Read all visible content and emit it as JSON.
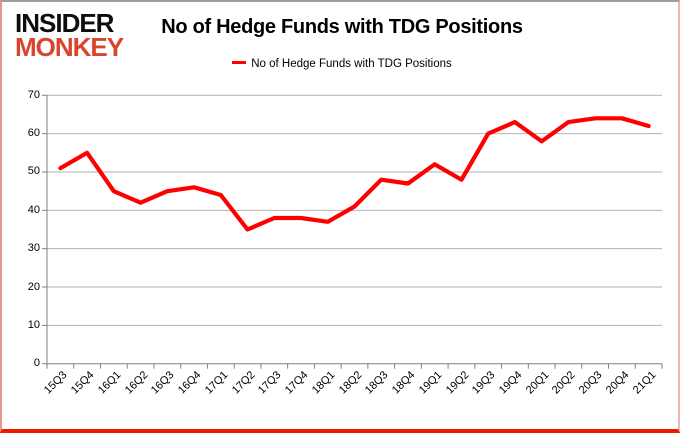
{
  "logo": {
    "line1": "INSIDER",
    "line2": "MONKEY",
    "accent_color": "#d9452c"
  },
  "header": {
    "title": "No of Hedge Funds with TDG Positions"
  },
  "legend": {
    "label": "No of Hedge Funds with TDG Positions",
    "line_color": "#ff0000"
  },
  "chart_data": {
    "type": "line",
    "title": "No of Hedge Funds with TDG Positions",
    "categories": [
      "15Q3",
      "15Q4",
      "16Q1",
      "16Q2",
      "16Q3",
      "16Q4",
      "17Q1",
      "17Q2",
      "17Q3",
      "17Q4",
      "18Q1",
      "18Q2",
      "18Q3",
      "18Q4",
      "19Q1",
      "19Q2",
      "19Q3",
      "19Q4",
      "20Q1",
      "20Q2",
      "20Q3",
      "20Q4",
      "21Q1"
    ],
    "series": [
      {
        "name": "No of Hedge Funds with TDG Positions",
        "color": "#ff0000",
        "values": [
          51,
          55,
          45,
          42,
          45,
          46,
          44,
          35,
          38,
          38,
          37,
          41,
          48,
          47,
          52,
          48,
          60,
          63,
          58,
          63,
          64,
          64,
          62
        ]
      }
    ],
    "xlabel": "",
    "ylabel": "",
    "ylim": [
      0,
      70
    ],
    "y_ticks": [
      0,
      10,
      20,
      30,
      40,
      50,
      60,
      70
    ],
    "grid": "horizontal",
    "legend_position": "top-center",
    "colors": {
      "line": "#ff0000",
      "gridline": "#b2b2b2",
      "axis": "#808080",
      "tick_label": "#000000"
    }
  }
}
